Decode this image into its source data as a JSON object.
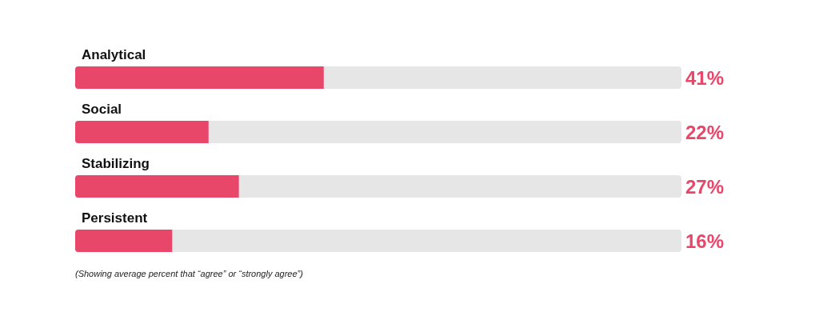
{
  "chart_data": {
    "type": "bar",
    "orientation": "horizontal",
    "categories": [
      "Analytical",
      "Social",
      "Stabilizing",
      "Persistent"
    ],
    "values": [
      41,
      22,
      27,
      16
    ],
    "color": "#e8476a",
    "value_labels": [
      "41%",
      "22%",
      "27%",
      "16%"
    ],
    "xlim": [
      0,
      100
    ],
    "tick_labels": "y",
    "annotations": [
      "(Showing average percent that “agree” or “strongly agree”)"
    ]
  }
}
